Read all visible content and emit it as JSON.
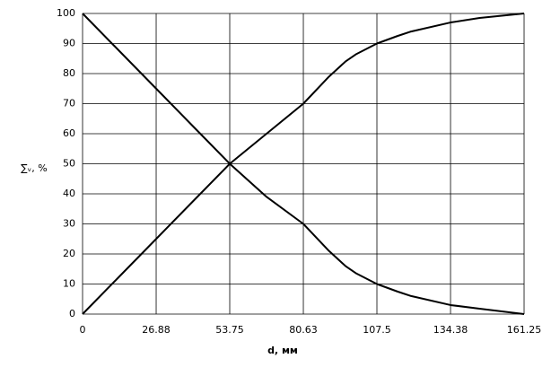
{
  "chart_data": {
    "type": "line",
    "x_label": "d, мм",
    "y_label": "∑ᵥ, %",
    "x": [
      0,
      13.44,
      26.88,
      40.31,
      53.75,
      67.19,
      80.63,
      90,
      96,
      100,
      107.5,
      115,
      120,
      134.38,
      145,
      161.25
    ],
    "series": [
      {
        "color": "#000000",
        "values": [
          0,
          12.5,
          25,
          37.5,
          50,
          60,
          70,
          79,
          84,
          86.5,
          90,
          92.5,
          94,
          97,
          98.5,
          100
        ]
      },
      {
        "color": "#000000",
        "values": [
          100,
          87.5,
          75,
          62.5,
          50,
          39,
          30,
          21,
          16,
          13.5,
          10,
          7.5,
          6,
          3,
          1.8,
          0
        ]
      }
    ],
    "xlim": [
      0,
      161.25
    ],
    "xticks": [
      0,
      26.88,
      53.75,
      80.63,
      107.5,
      134.38,
      161.25
    ],
    "ylim": [
      0,
      100
    ],
    "yticks": [
      0,
      10,
      20,
      30,
      40,
      50,
      60,
      70,
      80,
      90,
      100
    ],
    "grid": true
  }
}
